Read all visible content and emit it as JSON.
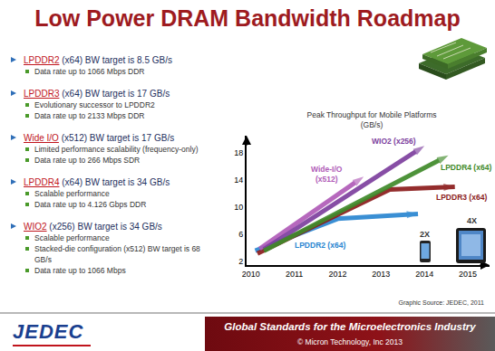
{
  "slide": {
    "title": "Low Power DRAM Bandwidth Roadmap",
    "bullets": [
      {
        "term": "LPDDR2",
        "text": "(x64) BW target is 8.5 GB/s",
        "sub": [
          "Data rate up to 1066 Mbps DDR"
        ]
      },
      {
        "term": "LPDDR3",
        "text": "(x64) BW target is 17 GB/s",
        "sub": [
          "Evolutionary successor to LPDDR2",
          "Data rate up to 2133 Mbps DDR"
        ]
      },
      {
        "term": "Wide I/O",
        "text": "(x512) BW target is 17 GB/s",
        "sub": [
          "Limited performance scalability (frequency-only)",
          "Data rate up to 266 Mbps SDR"
        ]
      },
      {
        "term": "LPDDR4",
        "text": "(x64) BW target is 34 GB/s",
        "sub": [
          "Scalable performance",
          "Data rate up to 4.126 Gbps DDR"
        ]
      },
      {
        "term": "WIO2",
        "text": "(x256) BW target is 34 GB/s",
        "sub": [
          "Scalable performance",
          "Stacked-die configuration (x512) BW target is 68 GB/s",
          "Data rate up to 1066 Mbps"
        ]
      }
    ],
    "source": "Graphic Source:  JEDEC, 2011",
    "logo": "JEDEC",
    "tagline": "Global Standards for the Microelectronics Industry",
    "copyright": "© Micron Technology, Inc 2013"
  },
  "chart_data": {
    "type": "line",
    "title": "Peak Throughput for Mobile Platforms",
    "subtitle": "(GB/s)",
    "xlim": [
      2009.9,
      2015.5
    ],
    "xticks": [
      2010,
      2011,
      2012,
      2013,
      2014,
      2015
    ],
    "ylim": [
      1.5,
      20.5
    ],
    "yticks": [
      2,
      6,
      10,
      14,
      18
    ],
    "grid": false,
    "marker": "arrow",
    "series": [
      {
        "name": "LPDDR2 (x64)",
        "color": "#2a86d1",
        "x": [
          2010.1,
          2012,
          2013.85
        ],
        "values": [
          3.6,
          8.3,
          9.0
        ]
      },
      {
        "name": "LPDDR3 (x64)",
        "color": "#8b1c1c",
        "x": [
          2010.15,
          2013.2,
          2014.7
        ],
        "values": [
          3.2,
          12.6,
          13.0
        ]
      },
      {
        "name": "Wide-I/O (x512)",
        "color": "#b05cb8",
        "x": [
          2010.2,
          2012.6
        ],
        "values": [
          3.9,
          14.5
        ]
      },
      {
        "name": "WIO2 (x256)",
        "color": "#7d3f9e",
        "x": [
          2010.3,
          2014.0
        ],
        "values": [
          3.8,
          19.0
        ]
      },
      {
        "name": "LPDDR4 (x64)",
        "color": "#3f8a2a",
        "x": [
          2010.3,
          2014.55
        ],
        "values": [
          3.6,
          17.6
        ]
      }
    ],
    "annotations": [
      "2X",
      "4X"
    ]
  }
}
